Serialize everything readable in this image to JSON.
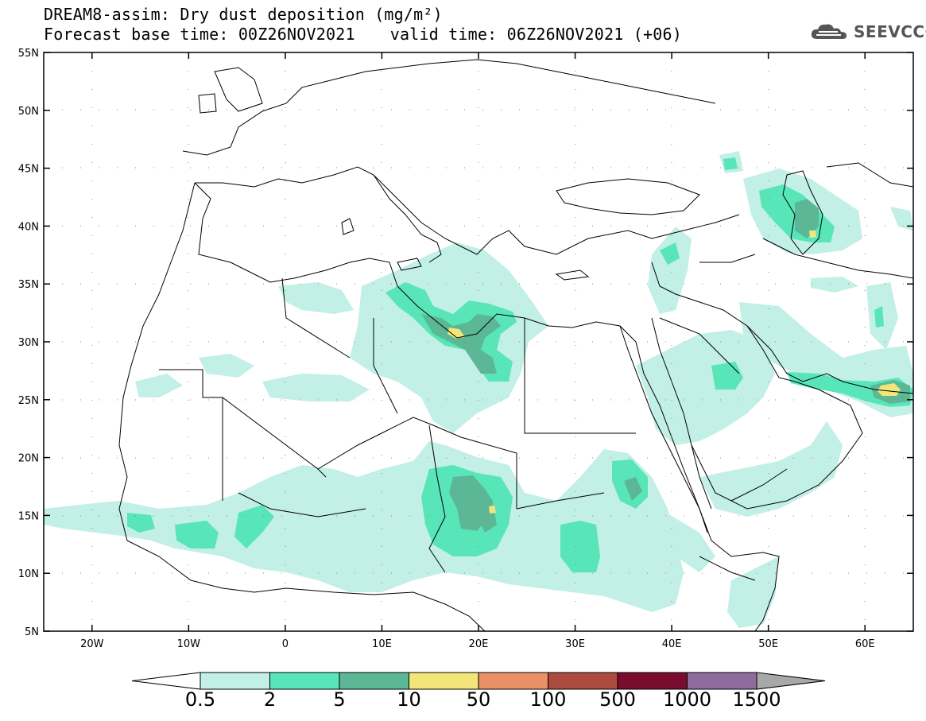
{
  "title": {
    "line1": "DREAM8-assim: Dry dust deposition (mg/m²)",
    "base_time": "Forecast base time: 00Z26NOV2021",
    "valid_time": "valid time: 06Z26NOV2021 (+06)"
  },
  "logo": {
    "text": "SEEVCCC",
    "icon": "cloud-icon"
  },
  "map": {
    "lon_range": [
      -25,
      65
    ],
    "lat_range": [
      5,
      55
    ],
    "lat_ticks": [
      {
        "lat": 55,
        "label": "55N"
      },
      {
        "lat": 50,
        "label": "50N"
      },
      {
        "lat": 45,
        "label": "45N"
      },
      {
        "lat": 40,
        "label": "40N"
      },
      {
        "lat": 35,
        "label": "35N"
      },
      {
        "lat": 30,
        "label": "30N"
      },
      {
        "lat": 25,
        "label": "25N"
      },
      {
        "lat": 20,
        "label": "20N"
      },
      {
        "lat": 15,
        "label": "15N"
      },
      {
        "lat": 10,
        "label": "10N"
      },
      {
        "lat": 5,
        "label": "5N"
      }
    ],
    "lon_ticks": [
      {
        "lon": -20,
        "label": "20W"
      },
      {
        "lon": -10,
        "label": "10W"
      },
      {
        "lon": 0,
        "label": "0"
      },
      {
        "lon": 10,
        "label": "10E"
      },
      {
        "lon": 20,
        "label": "20E"
      },
      {
        "lon": 30,
        "label": "30E"
      },
      {
        "lon": 40,
        "label": "40E"
      },
      {
        "lon": 50,
        "label": "50E"
      },
      {
        "lon": 60,
        "label": "60E"
      }
    ],
    "grid": "dotted"
  },
  "legend": {
    "levels": [
      {
        "label": "0.5",
        "color": "#c2efe6"
      },
      {
        "label": "2",
        "color": "#58e6b8"
      },
      {
        "label": "5",
        "color": "#5bb796"
      },
      {
        "label": "10",
        "color": "#f2e67a"
      },
      {
        "label": "50",
        "color": "#e99067"
      },
      {
        "label": "100",
        "color": "#ab4a3e"
      },
      {
        "label": "500",
        "color": "#7a0d2f"
      },
      {
        "label": "1000",
        "color": "#8e6b9c"
      },
      {
        "label": "1500",
        "color": "#a8a8a8"
      }
    ]
  }
}
